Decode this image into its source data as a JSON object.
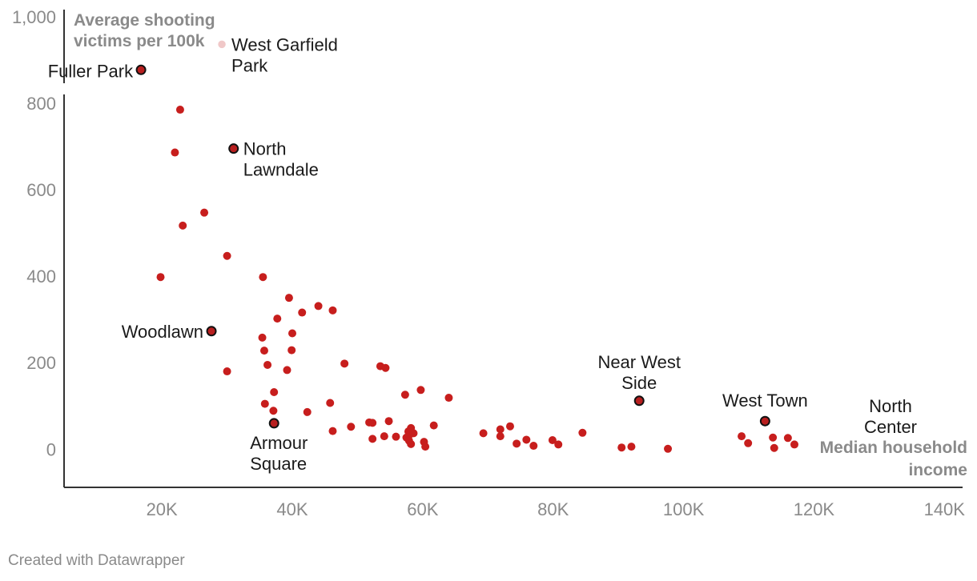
{
  "chart_data": {
    "type": "scatter",
    "title": "",
    "xlabel": "Median household income",
    "ylabel": "Average shooting victims per 100k",
    "ylabel_lines": [
      "Average shooting",
      "victims per 100k"
    ],
    "xlabel_lines": [
      "Median household",
      "income"
    ],
    "xlim": [
      5000,
      145000
    ],
    "ylim": [
      -90,
      1020
    ],
    "xticks": [
      20000,
      40000,
      60000,
      80000,
      100000,
      120000,
      140000
    ],
    "xtick_labels": [
      "20K",
      "40K",
      "60K",
      "80K",
      "100K",
      "120K",
      "140K"
    ],
    "yticks": [
      0,
      200,
      400,
      600,
      800,
      1000
    ],
    "ytick_labels": [
      "0",
      "200",
      "400",
      "600",
      "800",
      "1,000"
    ],
    "grid": false,
    "point_color": "#c71e1d",
    "highlight_color": "#b81f1f",
    "points": [
      [
        22800,
        785
      ],
      [
        22000,
        686
      ],
      [
        26500,
        547
      ],
      [
        23200,
        517
      ],
      [
        30000,
        447
      ],
      [
        19800,
        398
      ],
      [
        35500,
        398
      ],
      [
        39500,
        350
      ],
      [
        44000,
        331
      ],
      [
        46200,
        321
      ],
      [
        41500,
        316
      ],
      [
        37700,
        302
      ],
      [
        40000,
        268
      ],
      [
        35400,
        258
      ],
      [
        35700,
        228
      ],
      [
        39900,
        229
      ],
      [
        36200,
        195
      ],
      [
        39200,
        183
      ],
      [
        30000,
        180
      ],
      [
        48000,
        198
      ],
      [
        53500,
        192
      ],
      [
        54300,
        188
      ],
      [
        37200,
        132
      ],
      [
        59700,
        137
      ],
      [
        57300,
        126
      ],
      [
        64000,
        119
      ],
      [
        35800,
        105
      ],
      [
        45800,
        107
      ],
      [
        37100,
        89
      ],
      [
        42300,
        86
      ],
      [
        51800,
        62
      ],
      [
        52300,
        61
      ],
      [
        54800,
        65
      ],
      [
        49000,
        52
      ],
      [
        61700,
        55
      ],
      [
        46200,
        42
      ],
      [
        52300,
        24
      ],
      [
        54100,
        30
      ],
      [
        55900,
        29
      ],
      [
        57500,
        27
      ],
      [
        57800,
        41
      ],
      [
        58000,
        34
      ],
      [
        58600,
        37
      ],
      [
        58200,
        49
      ],
      [
        57900,
        20
      ],
      [
        58200,
        12
      ],
      [
        60200,
        17
      ],
      [
        60400,
        6
      ],
      [
        69300,
        37
      ],
      [
        71900,
        46
      ],
      [
        71900,
        30
      ],
      [
        73400,
        53
      ],
      [
        74400,
        13
      ],
      [
        75900,
        22
      ],
      [
        77000,
        8
      ],
      [
        79900,
        21
      ],
      [
        80800,
        11
      ],
      [
        84500,
        38
      ],
      [
        90500,
        4
      ],
      [
        92000,
        6
      ],
      [
        97600,
        1
      ],
      [
        108900,
        30
      ],
      [
        109900,
        14
      ],
      [
        113700,
        27
      ],
      [
        113900,
        3
      ],
      [
        116000,
        26
      ],
      [
        117000,
        11
      ]
    ],
    "highlighted": [
      {
        "label_lines": [
          "Fuller Park"
        ],
        "x": 16800,
        "y": 877
      },
      {
        "label_lines": [
          "West Garfield",
          "Park"
        ],
        "x": 29200,
        "y": 936
      },
      {
        "label_lines": [
          "North",
          "Lawndale"
        ],
        "x": 31000,
        "y": 695
      },
      {
        "label_lines": [
          "Woodlawn"
        ],
        "x": 27600,
        "y": 273
      },
      {
        "label_lines": [
          "Armour",
          "Square"
        ],
        "x": 37200,
        "y": 60
      },
      {
        "label_lines": [
          "Near West",
          "Side"
        ],
        "x": 93200,
        "y": 112
      },
      {
        "label_lines": [
          "West Town"
        ],
        "x": 112500,
        "y": 65
      },
      {
        "label_lines": [
          "North",
          "Center"
        ],
        "x": null,
        "y": null
      }
    ]
  },
  "footer": {
    "credit": "Created with Datawrapper"
  }
}
